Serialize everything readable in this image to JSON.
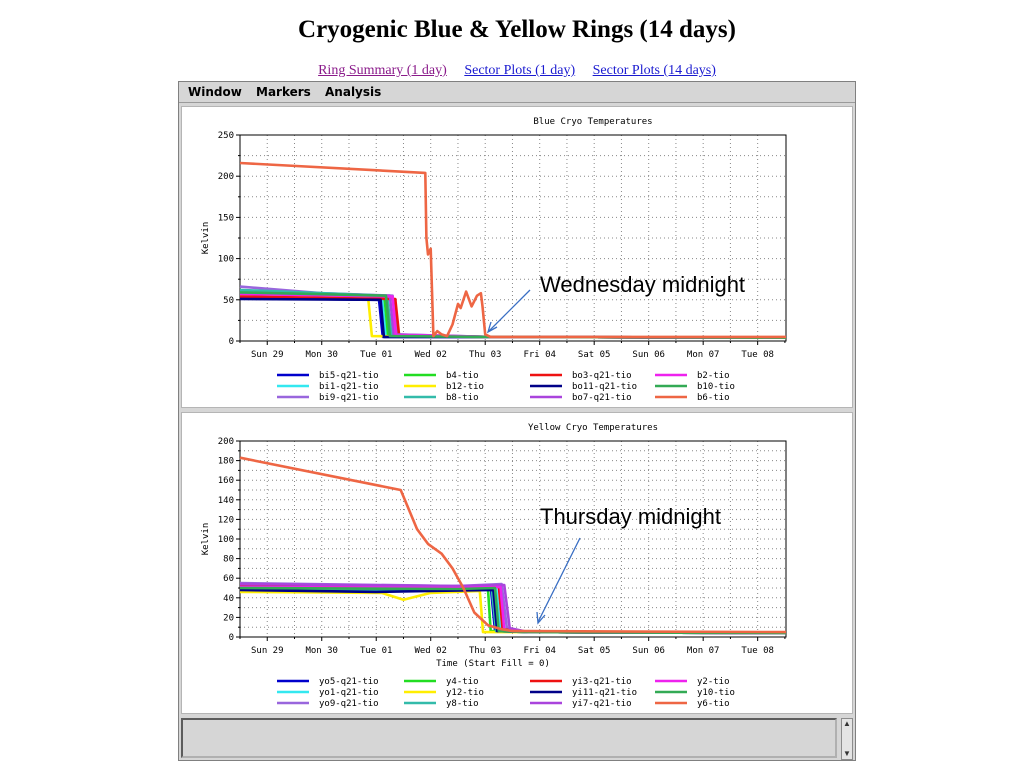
{
  "page": {
    "title": "Cryogenic Blue & Yellow Rings (14 days)",
    "links": [
      "Ring Summary (1 day)",
      "Sector Plots (1 day)",
      "Sector Plots (14 days)"
    ]
  },
  "menu": [
    "Window",
    "Markers",
    "Analysis"
  ],
  "annotations": {
    "blue": "Wednesday midnight",
    "yellow": "Thursday midnight"
  },
  "chart_data": [
    {
      "type": "line",
      "title": "Blue Cryo Temperatures",
      "xlabel": "",
      "ylabel": "Kelvin",
      "ylim": [
        0,
        250
      ],
      "yticks": [
        0,
        50,
        100,
        150,
        200,
        250
      ],
      "xlim": [
        0,
        10.02
      ],
      "xtick_labels": [
        "Sun 29",
        "Mon 30",
        "Tue 01",
        "Wed 02",
        "Thu 03",
        "Fri 04",
        "Sat 05",
        "Sun 06",
        "Mon 07",
        "Tue 08"
      ],
      "grid": true,
      "legend_position": "bottom",
      "series": [
        {
          "name": "bi5-q21-tio",
          "color": "#0000cc",
          "x": [
            0,
            2.55,
            2.62,
            4.6,
            10.02
          ],
          "y": [
            52,
            50,
            5,
            5,
            4
          ]
        },
        {
          "name": "bi1-q21-tio",
          "color": "#33e8f0",
          "x": [
            0,
            2.6,
            2.68,
            4.6,
            10.02
          ],
          "y": [
            60,
            54,
            6,
            5,
            4
          ]
        },
        {
          "name": "bi9-q21-tio",
          "color": "#9966dd",
          "x": [
            0,
            1.5,
            2.8,
            2.88,
            4.6,
            10.02
          ],
          "y": [
            66,
            58,
            55,
            8,
            5,
            4
          ]
        },
        {
          "name": "b4-tio",
          "color": "#22dd22",
          "x": [
            0,
            2.65,
            2.72,
            4.6,
            10.02
          ],
          "y": [
            58,
            54,
            6,
            5,
            4
          ]
        },
        {
          "name": "b12-tio",
          "color": "#ffee00",
          "x": [
            0,
            2.35,
            2.42,
            4.6,
            10.02
          ],
          "y": [
            56,
            53,
            6,
            5,
            4
          ]
        },
        {
          "name": "b8-tio",
          "color": "#33bbaa",
          "x": [
            0,
            2.7,
            2.78,
            4.6,
            10.02
          ],
          "y": [
            62,
            55,
            7,
            5,
            4
          ]
        },
        {
          "name": "bo3-q21-tio",
          "color": "#ee1111",
          "x": [
            0,
            2.85,
            2.92,
            4.6,
            10.02
          ],
          "y": [
            54,
            51,
            7,
            5,
            4
          ]
        },
        {
          "name": "bo11-q21-tio",
          "color": "#000088",
          "x": [
            0,
            2.58,
            2.64,
            4.6,
            10.02
          ],
          "y": [
            51,
            50,
            5,
            5,
            4
          ]
        },
        {
          "name": "bo7-q21-tio",
          "color": "#aa44dd",
          "x": [
            0,
            2.75,
            2.82,
            4.6,
            10.02
          ],
          "y": [
            58,
            55,
            8,
            5,
            4
          ]
        },
        {
          "name": "b2-tio",
          "color": "#ee22ee",
          "x": [
            0,
            2.8,
            2.86,
            4.6,
            10.02
          ],
          "y": [
            57,
            54,
            7,
            5,
            4
          ]
        },
        {
          "name": "b10-tio",
          "color": "#33aa55",
          "x": [
            0,
            2.68,
            2.75,
            4.6,
            10.02
          ],
          "y": [
            59,
            55,
            6,
            5,
            4
          ]
        },
        {
          "name": "b6-tio",
          "color": "#ee6644",
          "x": [
            0,
            3.4,
            3.42,
            3.45,
            3.5,
            3.55,
            3.62,
            3.7,
            3.8,
            3.9,
            4.0,
            4.05,
            4.15,
            4.25,
            4.35,
            4.42,
            4.45,
            4.5,
            4.6,
            10.02
          ],
          "y": [
            216,
            204,
            125,
            105,
            112,
            6,
            12,
            8,
            6,
            20,
            45,
            40,
            60,
            42,
            55,
            58,
            42,
            8,
            5,
            5
          ]
        }
      ]
    },
    {
      "type": "line",
      "title": "Yellow Cryo Temperatures",
      "xlabel": "Time (Start Fill = 0)",
      "ylabel": "Kelvin",
      "ylim": [
        0,
        200
      ],
      "yticks": [
        0,
        20,
        40,
        60,
        80,
        100,
        120,
        140,
        160,
        180,
        200
      ],
      "xlim": [
        0,
        10.02
      ],
      "xtick_labels": [
        "Sun 29",
        "Mon 30",
        "Tue 01",
        "Wed 02",
        "Thu 03",
        "Fri 04",
        "Sat 05",
        "Sun 06",
        "Mon 07",
        "Tue 08"
      ],
      "grid": true,
      "legend_position": "bottom",
      "series": [
        {
          "name": "yo5-q21-tio",
          "color": "#0000cc",
          "x": [
            0,
            3.0,
            4.0,
            4.6,
            4.68,
            5.3,
            10.02
          ],
          "y": [
            53,
            50,
            52,
            52,
            7,
            5,
            4
          ]
        },
        {
          "name": "yo1-q21-tio",
          "color": "#33e8f0",
          "x": [
            0,
            4.0,
            4.7,
            4.78,
            5.3,
            10.02
          ],
          "y": [
            50,
            49,
            50,
            6,
            5,
            4
          ]
        },
        {
          "name": "yo9-q21-tio",
          "color": "#9966dd",
          "x": [
            0,
            4.0,
            4.8,
            4.9,
            5.3,
            10.02
          ],
          "y": [
            55,
            52,
            54,
            8,
            5,
            4
          ]
        },
        {
          "name": "y4-tio",
          "color": "#22dd22",
          "x": [
            0,
            4.0,
            4.55,
            4.6,
            5.3,
            10.02
          ],
          "y": [
            51,
            50,
            50,
            6,
            5,
            4
          ]
        },
        {
          "name": "y12-tio",
          "color": "#ffee00",
          "x": [
            0,
            2.6,
            3.0,
            3.5,
            4.4,
            4.46,
            5.3,
            10.02
          ],
          "y": [
            46,
            45,
            38,
            45,
            47,
            5,
            5,
            4
          ]
        },
        {
          "name": "y8-tio",
          "color": "#33bbaa",
          "x": [
            0,
            4.0,
            4.62,
            4.7,
            5.3,
            10.02
          ],
          "y": [
            49,
            48,
            50,
            6,
            5,
            4
          ]
        },
        {
          "name": "yi3-q21-tio",
          "color": "#ee1111",
          "x": [
            0,
            4.0,
            4.75,
            4.82,
            5.3,
            10.02
          ],
          "y": [
            52,
            50,
            52,
            8,
            5,
            4
          ]
        },
        {
          "name": "yi11-q21-tio",
          "color": "#000088",
          "x": [
            0,
            2.5,
            3.5,
            4.65,
            4.72,
            5.3,
            10.02
          ],
          "y": [
            48,
            46,
            47,
            48,
            6,
            5,
            4
          ]
        },
        {
          "name": "yi7-q21-tio",
          "color": "#aa44dd",
          "x": [
            0,
            4.0,
            4.85,
            4.95,
            5.3,
            10.02
          ],
          "y": [
            54,
            52,
            53,
            9,
            5,
            4
          ]
        },
        {
          "name": "y2-tio",
          "color": "#ee22ee",
          "x": [
            0,
            4.0,
            4.78,
            4.85,
            5.3,
            10.02
          ],
          "y": [
            51,
            50,
            51,
            7,
            5,
            4
          ]
        },
        {
          "name": "y10-tio",
          "color": "#33aa55",
          "x": [
            0,
            4.0,
            4.68,
            4.75,
            5.3,
            10.02
          ],
          "y": [
            50,
            49,
            50,
            6,
            5,
            4
          ]
        },
        {
          "name": "y6-tio",
          "color": "#ee6644",
          "x": [
            0,
            2.95,
            3.1,
            3.25,
            3.45,
            3.7,
            3.9,
            4.1,
            4.3,
            4.55,
            4.8,
            5.0,
            5.3,
            10.02
          ],
          "y": [
            183,
            150,
            130,
            110,
            95,
            85,
            70,
            50,
            25,
            12,
            8,
            6,
            6,
            5
          ]
        }
      ]
    }
  ]
}
